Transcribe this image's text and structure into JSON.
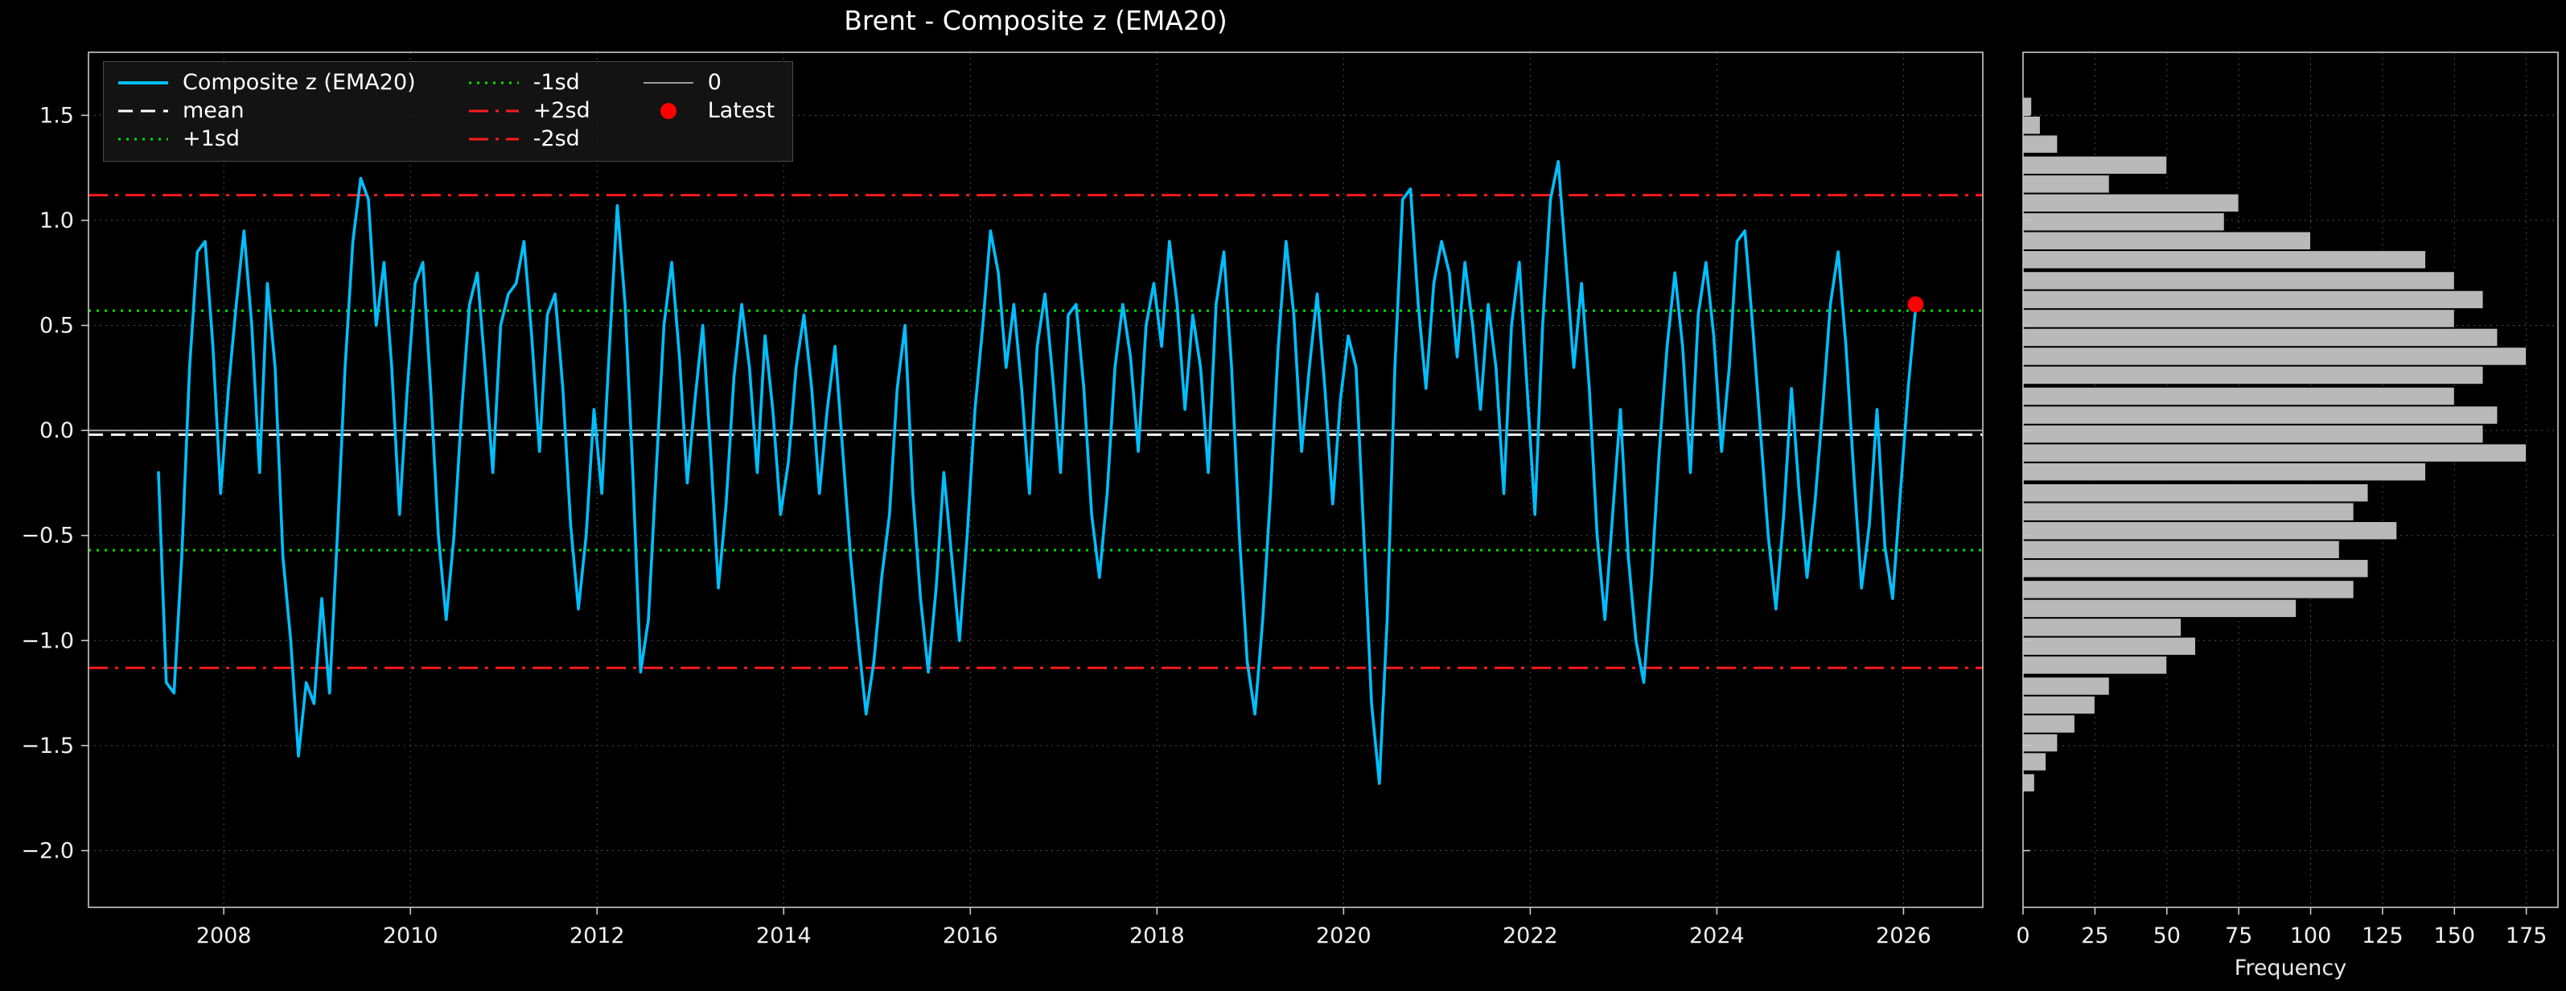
{
  "title": "Brent - Composite z (EMA20)",
  "colors": {
    "background": "#000000",
    "series": "#00bfff",
    "mean": "#ffffff",
    "sd1": "#00e000",
    "sd2": "#ff1a1a",
    "zero": "#9a9a9a",
    "latest": "#ff0000",
    "bar_fill": "#b9b9b9",
    "bar_edge": "#000000",
    "spine": "#c8c8c8",
    "grid": "#4d4d4d",
    "text": "#f0f0f0"
  },
  "legend": {
    "items": [
      {
        "label": "Composite z (EMA20)",
        "color": "#00bfff",
        "dash": "solid",
        "lw": 4
      },
      {
        "label": "mean",
        "color": "#ffffff",
        "dash": "dashed",
        "lw": 3
      },
      {
        "label": "+1sd",
        "color": "#00e000",
        "dash": "dotted",
        "lw": 3
      },
      {
        "label": "-1sd",
        "color": "#00e000",
        "dash": "dotted",
        "lw": 3
      },
      {
        "label": "+2sd",
        "color": "#ff1a1a",
        "dash": "dashdot",
        "lw": 3
      },
      {
        "label": "-2sd",
        "color": "#ff1a1a",
        "dash": "dashdot",
        "lw": 3
      },
      {
        "label": "0",
        "color": "#9a9a9a",
        "dash": "solid",
        "lw": 2
      },
      {
        "label": "Latest",
        "color": "#ff0000",
        "dash": "marker",
        "lw": 0
      }
    ]
  },
  "chart_data": [
    {
      "type": "line",
      "title": "Brent - Composite z (EMA20)",
      "xlabel": "",
      "ylabel": "",
      "xlim": [
        2006.55,
        2026.85
      ],
      "ylim": [
        -2.27,
        1.8
      ],
      "xticks": [
        2008,
        2010,
        2012,
        2014,
        2016,
        2018,
        2020,
        2022,
        2024,
        2026
      ],
      "yticks": [
        1.5,
        1.0,
        0.5,
        0.0,
        -0.5,
        -1.0,
        -1.5,
        -2.0
      ],
      "ytick_labels": [
        "1.5",
        "1.0",
        "0.5",
        "0.0",
        "−0.5",
        "−1.0",
        "−1.5",
        "−2.0"
      ],
      "ref_lines": [
        {
          "name": "mean",
          "y": -0.02,
          "color": "#ffffff",
          "dash": "dashed",
          "lw": 3
        },
        {
          "name": "+1sd",
          "y": 0.57,
          "color": "#00e000",
          "dash": "dotted",
          "lw": 3
        },
        {
          "name": "-1sd",
          "y": -0.57,
          "color": "#00e000",
          "dash": "dotted",
          "lw": 3
        },
        {
          "name": "+2sd",
          "y": 1.12,
          "color": "#ff1a1a",
          "dash": "dashdot",
          "lw": 3
        },
        {
          "name": "-2sd",
          "y": -1.13,
          "color": "#ff1a1a",
          "dash": "dashdot",
          "lw": 3
        },
        {
          "name": "0",
          "y": 0.0,
          "color": "#9a9a9a",
          "dash": "solid",
          "lw": 2
        }
      ],
      "latest": {
        "x": 2026.13,
        "y": 0.6
      },
      "series_name": "Composite z (EMA20)",
      "x0": 2007.3,
      "dx": 0.0833333,
      "y": [
        -0.2,
        -1.2,
        -1.25,
        -0.6,
        0.3,
        0.85,
        0.9,
        0.4,
        -0.3,
        0.2,
        0.6,
        0.95,
        0.5,
        -0.2,
        0.7,
        0.3,
        -0.6,
        -1.0,
        -1.55,
        -1.2,
        -1.3,
        -0.8,
        -1.25,
        -0.5,
        0.3,
        0.9,
        1.2,
        1.1,
        0.5,
        0.8,
        0.3,
        -0.4,
        0.2,
        0.7,
        0.8,
        0.2,
        -0.5,
        -0.9,
        -0.5,
        0.1,
        0.6,
        0.75,
        0.3,
        -0.2,
        0.5,
        0.65,
        0.7,
        0.9,
        0.45,
        -0.1,
        0.55,
        0.65,
        0.2,
        -0.45,
        -0.85,
        -0.5,
        0.1,
        -0.3,
        0.4,
        1.07,
        0.6,
        -0.2,
        -1.15,
        -0.9,
        -0.2,
        0.5,
        0.8,
        0.35,
        -0.25,
        0.15,
        0.5,
        -0.1,
        -0.75,
        -0.35,
        0.25,
        0.6,
        0.3,
        -0.2,
        0.45,
        0.1,
        -0.4,
        -0.15,
        0.3,
        0.55,
        0.2,
        -0.3,
        0.1,
        0.4,
        -0.1,
        -0.6,
        -1.0,
        -1.35,
        -1.1,
        -0.7,
        -0.4,
        0.2,
        0.5,
        -0.3,
        -0.8,
        -1.15,
        -0.75,
        -0.2,
        -0.6,
        -1.0,
        -0.5,
        0.1,
        0.5,
        0.95,
        0.75,
        0.3,
        0.6,
        0.2,
        -0.3,
        0.4,
        0.65,
        0.25,
        -0.2,
        0.55,
        0.6,
        0.2,
        -0.4,
        -0.7,
        -0.3,
        0.3,
        0.6,
        0.35,
        -0.1,
        0.5,
        0.7,
        0.4,
        0.9,
        0.6,
        0.1,
        0.55,
        0.3,
        -0.2,
        0.6,
        0.85,
        0.3,
        -0.5,
        -1.1,
        -1.35,
        -0.9,
        -0.3,
        0.4,
        0.9,
        0.55,
        -0.1,
        0.3,
        0.65,
        0.2,
        -0.35,
        0.15,
        0.45,
        0.3,
        -0.5,
        -1.3,
        -1.68,
        -0.9,
        0.3,
        1.1,
        1.15,
        0.6,
        0.2,
        0.7,
        0.9,
        0.75,
        0.35,
        0.8,
        0.5,
        0.1,
        0.6,
        0.3,
        -0.3,
        0.5,
        0.8,
        0.2,
        -0.4,
        0.5,
        1.1,
        1.28,
        0.8,
        0.3,
        0.7,
        0.2,
        -0.5,
        -0.9,
        -0.4,
        0.1,
        -0.6,
        -1.0,
        -1.2,
        -0.7,
        -0.1,
        0.4,
        0.75,
        0.4,
        -0.2,
        0.55,
        0.8,
        0.45,
        -0.1,
        0.3,
        0.9,
        0.95,
        0.5,
        0.0,
        -0.5,
        -0.85,
        -0.4,
        0.2,
        -0.3,
        -0.7,
        -0.35,
        0.1,
        0.6,
        0.85,
        0.4,
        -0.2,
        -0.75,
        -0.45,
        0.1,
        -0.55,
        -0.8,
        -0.3,
        0.2,
        0.6
      ]
    },
    {
      "type": "bar",
      "orientation": "horizontal",
      "xlabel": "Frequency",
      "xlim": [
        0,
        186
      ],
      "xticks": [
        0,
        25,
        50,
        75,
        100,
        125,
        150,
        175
      ],
      "bin_height": 0.0917,
      "bin_centers": [
        1.54,
        1.45,
        1.36,
        1.26,
        1.17,
        1.08,
        0.99,
        0.9,
        0.81,
        0.71,
        0.62,
        0.53,
        0.44,
        0.35,
        0.26,
        0.16,
        0.07,
        -0.02,
        -0.11,
        -0.2,
        -0.3,
        -0.39,
        -0.48,
        -0.57,
        -0.66,
        -0.76,
        -0.85,
        -0.94,
        -1.03,
        -1.12,
        -1.22,
        -1.31,
        -1.4,
        -1.49,
        -1.58,
        -1.68
      ],
      "counts": [
        3,
        6,
        12,
        50,
        30,
        75,
        70,
        100,
        140,
        150,
        160,
        150,
        165,
        175,
        160,
        150,
        165,
        160,
        175,
        140,
        120,
        115,
        130,
        110,
        120,
        115,
        95,
        55,
        60,
        50,
        30,
        25,
        18,
        12,
        8,
        4
      ]
    }
  ]
}
